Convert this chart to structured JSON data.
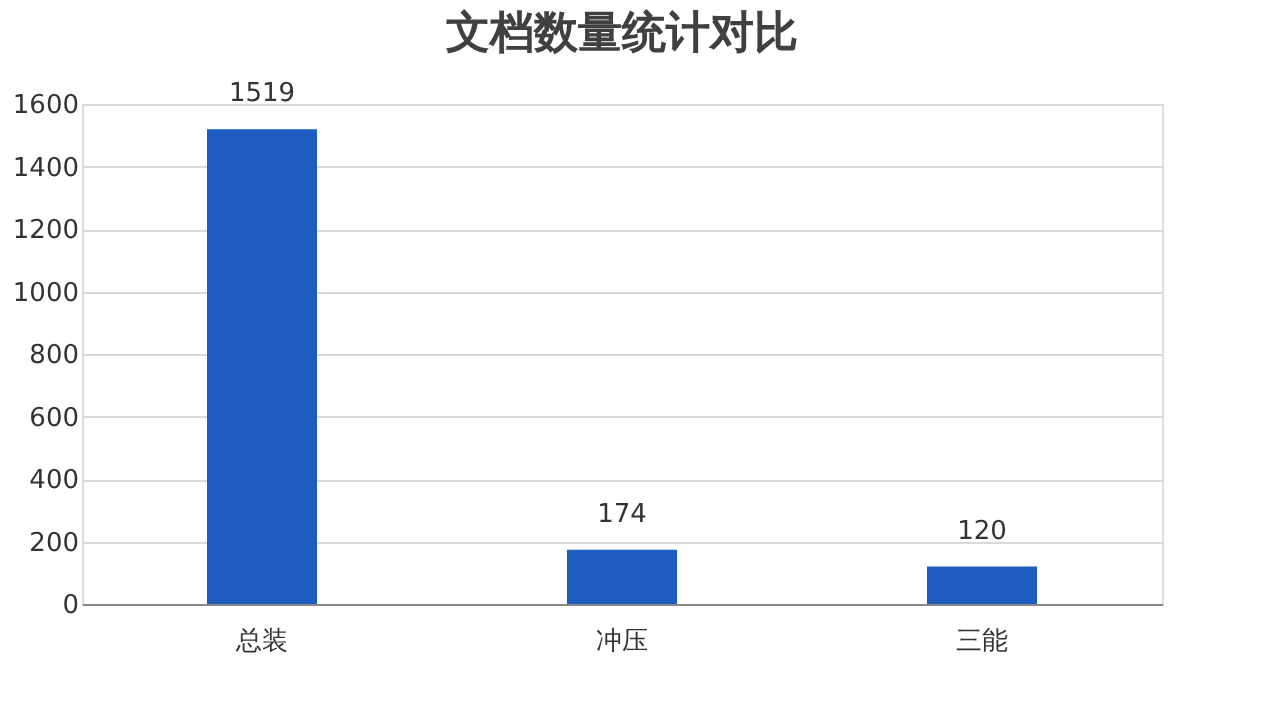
{
  "chart_data": {
    "type": "bar",
    "title": "文档数量统计对比",
    "categories": [
      "总装",
      "冲压",
      "三能"
    ],
    "values": [
      1519,
      174,
      120
    ],
    "color": "#1f5cc0",
    "ylim": [
      0,
      1600
    ],
    "yticks": [
      0,
      200,
      400,
      600,
      800,
      1000,
      1200,
      1400,
      1600
    ],
    "grid": "y",
    "data_labels": true
  }
}
